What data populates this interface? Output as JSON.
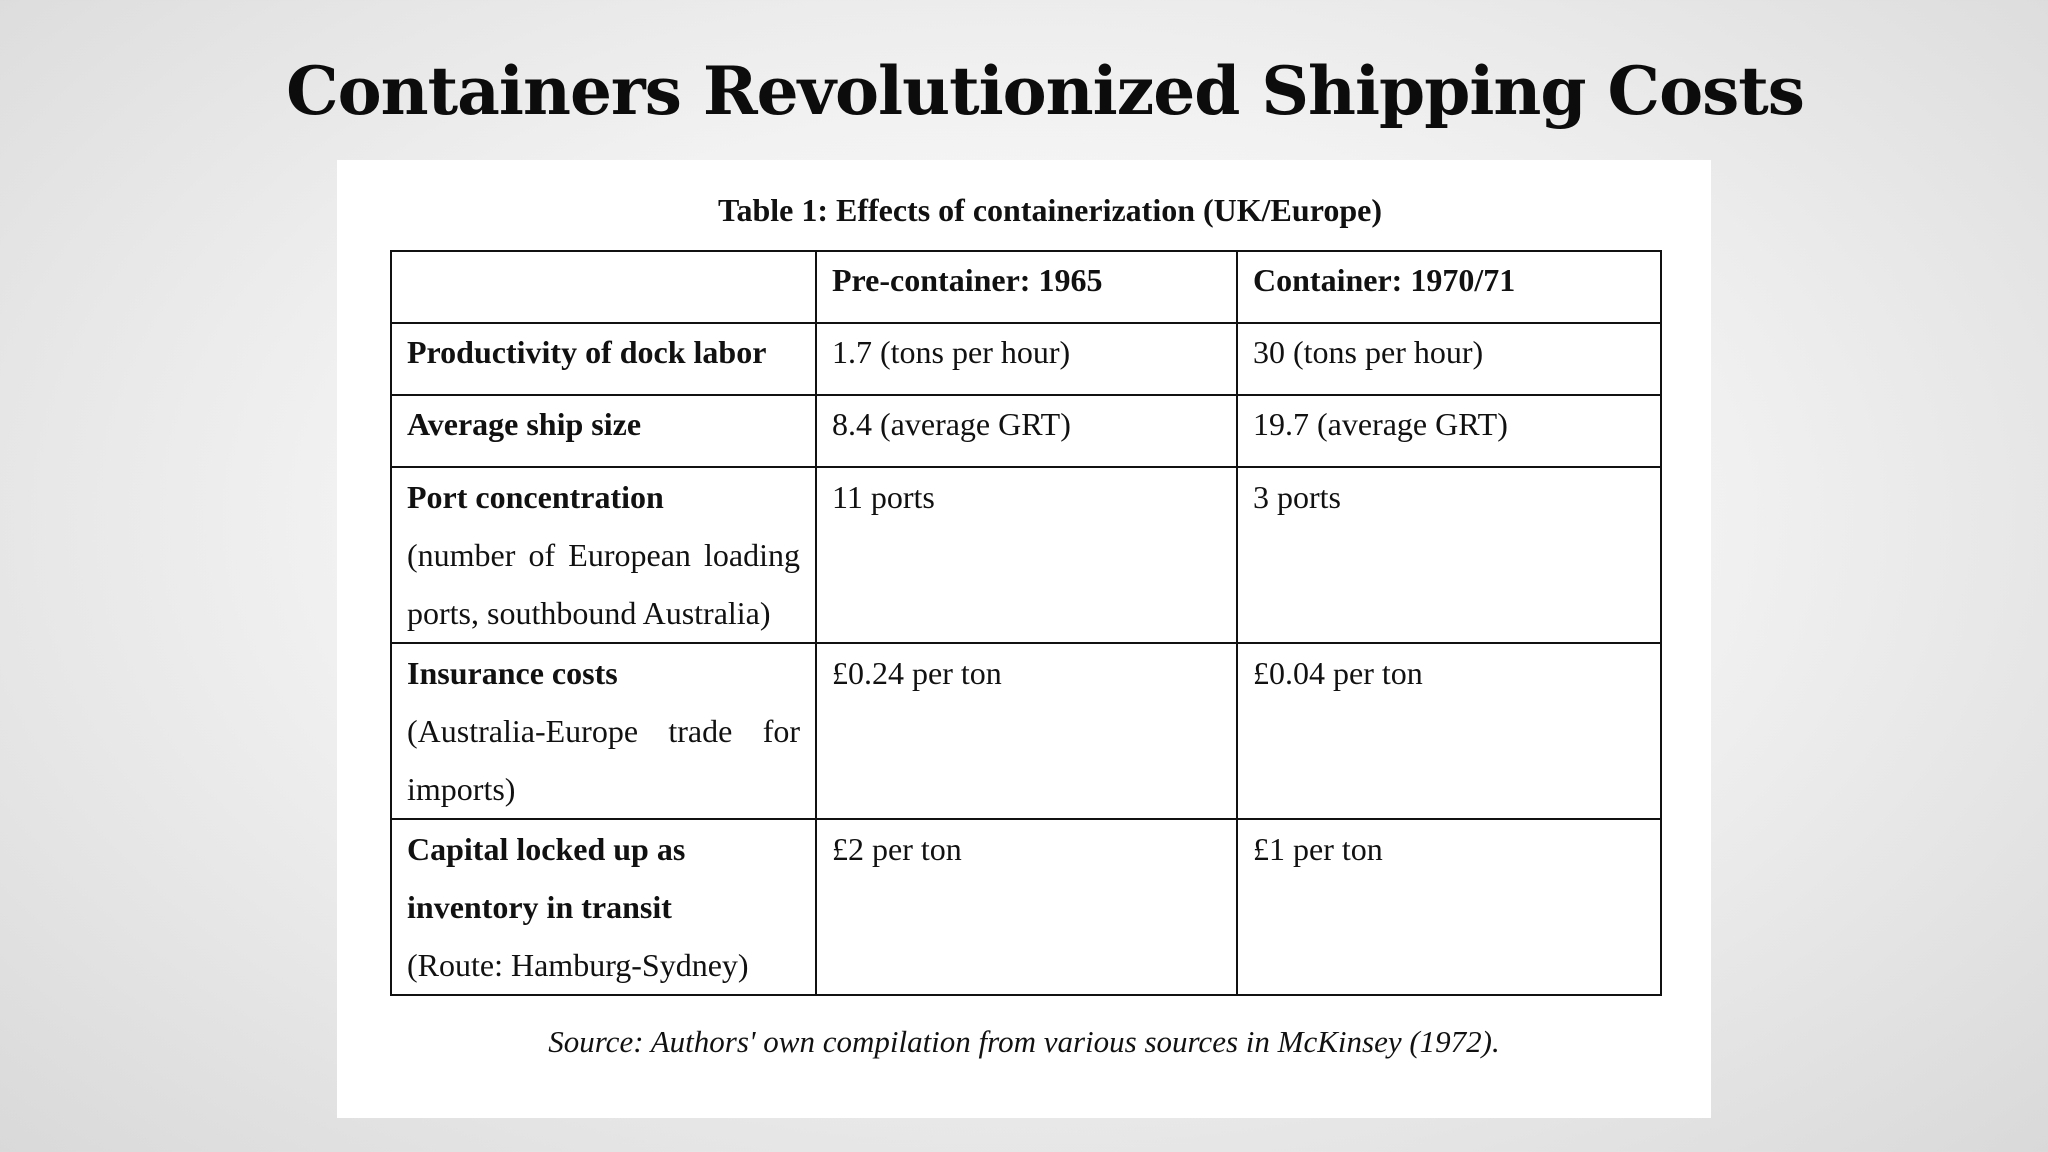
{
  "slide": {
    "title": "Containers Revolutionized Shipping Costs"
  },
  "table": {
    "caption": "Table 1: Effects of containerization (UK/Europe)",
    "headers": [
      "",
      "Pre-container: 1965",
      "Container: 1970/71"
    ],
    "rows": [
      {
        "label": "Productivity of dock labor",
        "note": "",
        "pre": "1.7 (tons per hour)",
        "post": "30 (tons per hour)"
      },
      {
        "label": "Average ship size",
        "note": "",
        "pre": "8.4 (average GRT)",
        "post": "19.7 (average GRT)"
      },
      {
        "label": "Port concentration",
        "note": "(number of European loading ports, southbound Australia)",
        "pre": "11 ports",
        "post": "3 ports"
      },
      {
        "label": "Insurance costs",
        "note": "(Australia-Europe trade for imports)",
        "pre": "£0.24  per ton",
        "post": "£0.04  per ton"
      },
      {
        "label": "Capital locked up as inventory in transit",
        "note": "(Route: Hamburg-Sydney)",
        "pre": "£2 per ton",
        "post": "£1  per ton"
      }
    ],
    "source": "Source: Authors' own compilation from various sources in McKinsey (1972)."
  }
}
